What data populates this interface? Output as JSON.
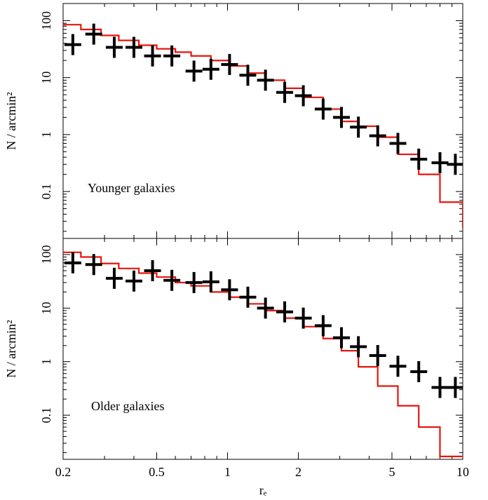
{
  "chart_data": [
    {
      "type": "line",
      "panel_label": "Younger galaxies",
      "ylabel": "N / arcmin²",
      "xlabel": "",
      "xscale": "log",
      "yscale": "log",
      "xlim": [
        0.2,
        10
      ],
      "ylim": [
        0.015,
        200
      ],
      "x_ticks": [
        "0.2",
        "0.5",
        "1",
        "2",
        "5",
        "10"
      ],
      "y_ticks": [
        "0.1",
        "1",
        "10",
        "100"
      ],
      "series": [
        {
          "kind": "step",
          "color": "#e8150f",
          "bin_edges": [
            0.2,
            0.238,
            0.29,
            0.345,
            0.42,
            0.5,
            0.6,
            0.7,
            0.85,
            1.02,
            1.22,
            1.45,
            1.75,
            2.1,
            2.55,
            3.05,
            3.6,
            4.35,
            5.3,
            6.5,
            8.0,
            10
          ],
          "values": [
            85,
            70,
            55,
            45,
            37,
            32,
            28,
            24,
            20,
            16,
            12,
            9,
            6.5,
            4.5,
            2.8,
            1.7,
            1.4,
            0.9,
            0.45,
            0.2,
            0.065,
            0.023
          ]
        },
        {
          "kind": "points",
          "color": "#000000",
          "x": [
            0.22,
            0.27,
            0.33,
            0.4,
            0.48,
            0.58,
            0.72,
            0.85,
            1.02,
            1.22,
            1.45,
            1.75,
            2.1,
            2.55,
            3.05,
            3.6,
            4.35,
            5.3,
            6.5,
            8.0,
            9.3
          ],
          "y": [
            38,
            58,
            34,
            34,
            24,
            24,
            13,
            14,
            17,
            11,
            9,
            5.5,
            4.8,
            2.8,
            2.0,
            1.35,
            0.95,
            0.7,
            0.37,
            0.32,
            0.3
          ]
        }
      ]
    },
    {
      "type": "line",
      "panel_label": "Older galaxies",
      "ylabel": "N / arcmin²",
      "xlabel": "rₑ",
      "xscale": "log",
      "yscale": "log",
      "xlim": [
        0.2,
        10
      ],
      "ylim": [
        0.015,
        200
      ],
      "x_ticks": [
        "0.2",
        "0.5",
        "1",
        "2",
        "5",
        "10"
      ],
      "y_ticks": [
        "0.1",
        "1",
        "10",
        "100"
      ],
      "series": [
        {
          "kind": "step",
          "color": "#e8150f",
          "bin_edges": [
            0.2,
            0.238,
            0.29,
            0.345,
            0.42,
            0.5,
            0.6,
            0.7,
            0.85,
            1.02,
            1.22,
            1.45,
            1.75,
            2.1,
            2.55,
            3.05,
            3.6,
            4.35,
            5.3,
            6.5,
            8.0,
            10
          ],
          "values": [
            110,
            90,
            68,
            55,
            45,
            38,
            30,
            26,
            20,
            16,
            12,
            9,
            6.5,
            4.5,
            2.7,
            1.6,
            0.8,
            0.35,
            0.15,
            0.06,
            0.017,
            0.017
          ]
        },
        {
          "kind": "points",
          "color": "#000000",
          "x": [
            0.22,
            0.27,
            0.33,
            0.4,
            0.48,
            0.58,
            0.72,
            0.85,
            1.02,
            1.22,
            1.45,
            1.75,
            2.1,
            2.55,
            3.05,
            3.6,
            4.35,
            5.3,
            6.5,
            8.0,
            9.3
          ],
          "y": [
            70,
            65,
            36,
            32,
            50,
            33,
            30,
            31,
            22,
            16,
            10,
            8.5,
            6.5,
            4.7,
            2.8,
            1.9,
            1.3,
            0.82,
            0.65,
            0.33,
            0.33
          ]
        }
      ]
    }
  ]
}
